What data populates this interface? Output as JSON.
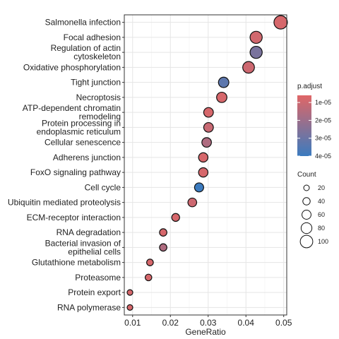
{
  "chart_data": {
    "type": "scatter",
    "title": "",
    "xlabel": "GeneRatio",
    "ylabel": "",
    "xlim": [
      0.0078,
      0.0508
    ],
    "xticks": [
      0.01,
      0.02,
      0.03,
      0.04,
      0.05
    ],
    "xtick_labels": [
      "0.01",
      "0.02",
      "0.03",
      "0.04",
      "0.05"
    ],
    "grid": true,
    "legend_position": "right",
    "terms": [
      {
        "label": [
          "Salmonella infection"
        ],
        "gene_ratio": 0.0492,
        "count": 110,
        "p_adjust": 8e-06
      },
      {
        "label": [
          "Focal adhesion"
        ],
        "gene_ratio": 0.0427,
        "count": 95,
        "p_adjust": 9e-06
      },
      {
        "label": [
          "Regulation of actin",
          "cytoskeleton"
        ],
        "gene_ratio": 0.0427,
        "count": 95,
        "p_adjust": 2.7e-05
      },
      {
        "label": [
          "Oxidative phosphorylation"
        ],
        "gene_ratio": 0.0407,
        "count": 90,
        "p_adjust": 1e-05
      },
      {
        "label": [
          "Tight junction"
        ],
        "gene_ratio": 0.0341,
        "count": 75,
        "p_adjust": 3.3e-05
      },
      {
        "label": [
          "Necroptosis"
        ],
        "gene_ratio": 0.0336,
        "count": 74,
        "p_adjust": 8e-06
      },
      {
        "label": [
          "ATP-dependent chromatin",
          "remodeling"
        ],
        "gene_ratio": 0.0301,
        "count": 66,
        "p_adjust": 8e-06
      },
      {
        "label": [
          "Protein processing in",
          "endoplasmic reticulum"
        ],
        "gene_ratio": 0.0301,
        "count": 66,
        "p_adjust": 1.1e-05
      },
      {
        "label": [
          "Cellular senescence"
        ],
        "gene_ratio": 0.0296,
        "count": 65,
        "p_adjust": 1.6e-05
      },
      {
        "label": [
          "Adherens junction"
        ],
        "gene_ratio": 0.0287,
        "count": 63,
        "p_adjust": 8e-06
      },
      {
        "label": [
          "FoxO signaling pathway"
        ],
        "gene_ratio": 0.0287,
        "count": 63,
        "p_adjust": 8e-06
      },
      {
        "label": [
          "Cell cycle"
        ],
        "gene_ratio": 0.0276,
        "count": 60,
        "p_adjust": 4e-05
      },
      {
        "label": [
          "Ubiquitin mediated proteolysis"
        ],
        "gene_ratio": 0.0258,
        "count": 56,
        "p_adjust": 1e-05
      },
      {
        "label": [
          "ECM-receptor interaction"
        ],
        "gene_ratio": 0.0214,
        "count": 46,
        "p_adjust": 8e-06
      },
      {
        "label": [
          "RNA degradation"
        ],
        "gene_ratio": 0.0181,
        "count": 40,
        "p_adjust": 8e-06
      },
      {
        "label": [
          "Bacterial invasion of",
          "epithelial cells"
        ],
        "gene_ratio": 0.0181,
        "count": 40,
        "p_adjust": 1.6e-05
      },
      {
        "label": [
          "Glutathione metabolism"
        ],
        "gene_ratio": 0.0146,
        "count": 32,
        "p_adjust": 8e-06
      },
      {
        "label": [
          "Proteasome"
        ],
        "gene_ratio": 0.0142,
        "count": 31,
        "p_adjust": 8e-06
      },
      {
        "label": [
          "Protein export"
        ],
        "gene_ratio": 0.0093,
        "count": 20,
        "p_adjust": 8e-06
      },
      {
        "label": [
          "RNA polymerase"
        ],
        "gene_ratio": 0.0093,
        "count": 20,
        "p_adjust": 8e-06
      }
    ],
    "color_legend": {
      "title": "p.adjust",
      "domain": [
        6e-06,
        4e-05
      ],
      "low_color": "#e06666",
      "high_color": "#3b7bbf",
      "ticks": [
        1e-05,
        2e-05,
        3e-05,
        4e-05
      ],
      "tick_labels": [
        "1e-05",
        "2e-05",
        "3e-05",
        "4e-05"
      ]
    },
    "size_legend": {
      "title": "Count",
      "values": [
        20,
        40,
        60,
        80,
        100
      ],
      "labels": [
        "20",
        "40",
        "60",
        "80",
        "100"
      ],
      "count_range": [
        20,
        110
      ]
    }
  }
}
